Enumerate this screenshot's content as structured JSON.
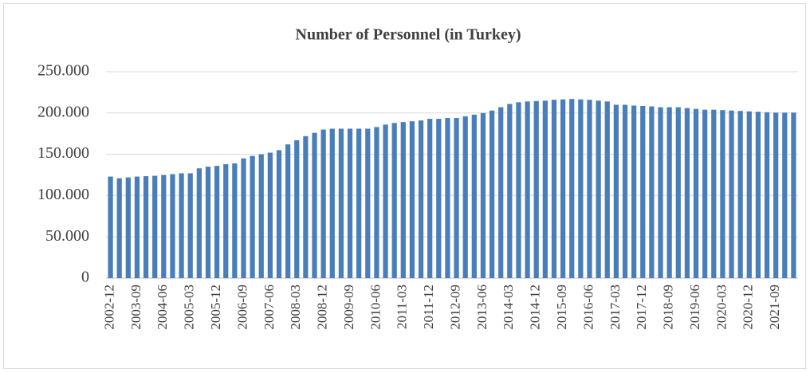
{
  "chart_data": {
    "type": "bar",
    "title": "Number of Personnel (in Turkey)",
    "categories": [
      "2002-12",
      null,
      null,
      "2003-09",
      null,
      null,
      "2004-06",
      null,
      null,
      "2005-03",
      null,
      null,
      "2005-12",
      null,
      null,
      "2006-09",
      null,
      null,
      "2007-06",
      null,
      null,
      "2008-03",
      null,
      null,
      "2008-12",
      null,
      null,
      "2009-09",
      null,
      null,
      "2010-06",
      null,
      null,
      "2011-03",
      null,
      null,
      "2011-12",
      null,
      null,
      "2012-09",
      null,
      null,
      "2013-06",
      null,
      null,
      "2014-03",
      null,
      null,
      "2014-12",
      null,
      null,
      "2015-09",
      null,
      null,
      "2016-06",
      null,
      null,
      "2017-03",
      null,
      null,
      "2017-12",
      null,
      null,
      "2018-09",
      null,
      null,
      "2019-06",
      null,
      null,
      "2020-03",
      null,
      null,
      "2020-12",
      null,
      null,
      "2021-09",
      null,
      null
    ],
    "values": [
      123000,
      121000,
      122000,
      123000,
      123500,
      124000,
      125000,
      126000,
      127000,
      127000,
      133000,
      135000,
      136000,
      138000,
      139000,
      145000,
      148000,
      150000,
      152000,
      155000,
      162000,
      167000,
      172000,
      176000,
      180000,
      181000,
      181000,
      181000,
      181000,
      181000,
      183000,
      186000,
      188000,
      189000,
      190000,
      191000,
      193000,
      193000,
      194000,
      194000,
      196000,
      198000,
      200000,
      203000,
      207000,
      211000,
      213000,
      214000,
      214500,
      215000,
      216000,
      216500,
      217000,
      216500,
      216000,
      215000,
      214000,
      210000,
      210000,
      209000,
      208500,
      208000,
      207000,
      207000,
      207000,
      206000,
      205000,
      204000,
      204000,
      203500,
      203000,
      202500,
      202000,
      201500,
      201000,
      200500,
      200500,
      200500
    ],
    "color": "#4a7ebb",
    "ylim": [
      0,
      250000
    ],
    "yticks": [
      0,
      {
        "value": 50000,
        "label": "50.000"
      },
      {
        "value": 100000,
        "label": "100.000"
      },
      {
        "value": 150000,
        "label": "150.000"
      },
      {
        "value": 200000,
        "label": "200.000"
      },
      {
        "value": 250000,
        "label": "250.000"
      }
    ],
    "grid": true
  }
}
